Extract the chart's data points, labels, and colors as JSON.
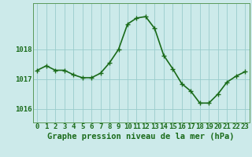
{
  "x": [
    0,
    1,
    2,
    3,
    4,
    5,
    6,
    7,
    8,
    9,
    10,
    11,
    12,
    13,
    14,
    15,
    16,
    17,
    18,
    19,
    20,
    21,
    22,
    23
  ],
  "y": [
    1017.3,
    1017.45,
    1017.3,
    1017.3,
    1017.15,
    1017.05,
    1017.05,
    1017.2,
    1017.55,
    1018.0,
    1018.85,
    1019.05,
    1019.1,
    1018.7,
    1017.8,
    1017.35,
    1016.85,
    1016.6,
    1016.2,
    1016.2,
    1016.5,
    1016.9,
    1017.1,
    1017.25
  ],
  "line_color": "#1a6b1a",
  "marker_color": "#1a6b1a",
  "bg_color": "#cceaea",
  "grid_color": "#99cccc",
  "xlabel": "Graphe pression niveau de la mer (hPa)",
  "xlabel_fontsize": 7.5,
  "ylabel_ticks": [
    1016,
    1017,
    1018
  ],
  "ylim": [
    1015.55,
    1019.55
  ],
  "xlim": [
    -0.5,
    23.5
  ],
  "tick_fontsize": 6.5,
  "line_width": 1.2,
  "marker_size": 4
}
